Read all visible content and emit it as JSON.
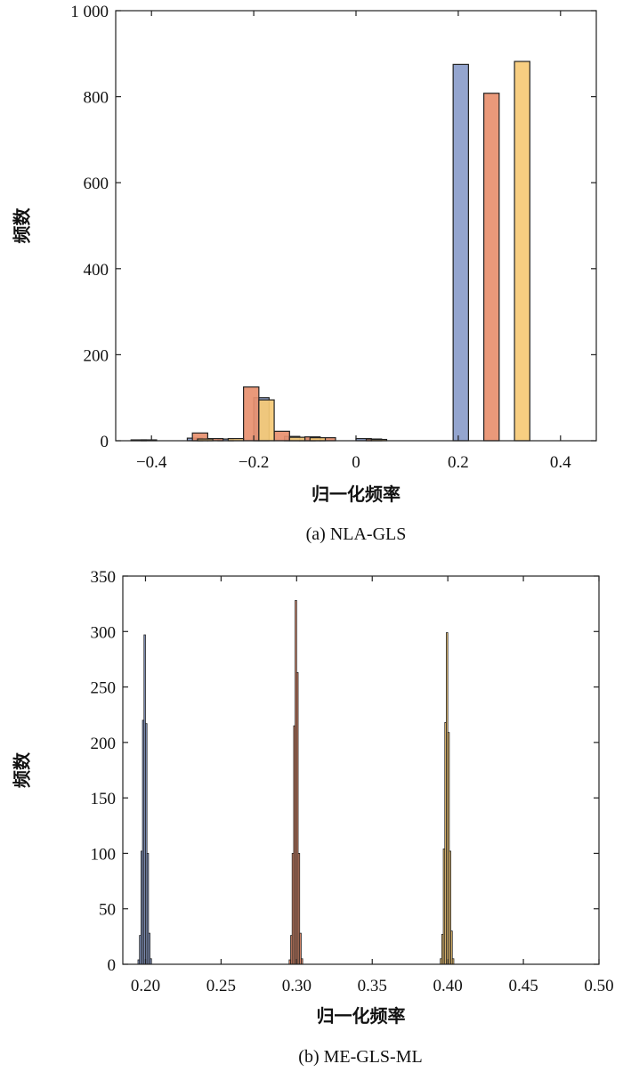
{
  "chart_data": [
    {
      "type": "bar",
      "caption": "(a) NLA-GLS",
      "xlabel": "归一化频率",
      "ylabel": "频数",
      "xlim": [
        -0.47,
        0.47
      ],
      "ylim": [
        0,
        1000
      ],
      "xticks": [
        -0.4,
        -0.2,
        0,
        0.2,
        0.4
      ],
      "xtick_labels": [
        "−0.4",
        "−0.2",
        "0",
        "0.2",
        "0.4"
      ],
      "yticks": [
        0,
        200,
        400,
        600,
        800,
        1000
      ],
      "ytick_labels": [
        "0",
        "200",
        "400",
        "600",
        "800",
        "1 000"
      ],
      "grid": false,
      "series": [
        {
          "color": "#8b9dcb",
          "bins": [
            {
              "x0": -0.44,
              "x1": -0.41,
              "y": 2
            },
            {
              "x0": -0.33,
              "x1": -0.3,
              "y": 6
            },
            {
              "x0": -0.27,
              "x1": -0.24,
              "y": 4
            },
            {
              "x0": -0.2,
              "x1": -0.17,
              "y": 100
            },
            {
              "x0": -0.14,
              "x1": -0.11,
              "y": 10
            },
            {
              "x0": -0.11,
              "x1": -0.08,
              "y": 8
            },
            {
              "x0": 0.0,
              "x1": 0.03,
              "y": 5
            },
            {
              "x0": 0.19,
              "x1": 0.22,
              "y": 875
            }
          ]
        },
        {
          "color": "#e8906f",
          "bins": [
            {
              "x0": -0.42,
              "x1": -0.39,
              "y": 2
            },
            {
              "x0": -0.32,
              "x1": -0.29,
              "y": 18
            },
            {
              "x0": -0.29,
              "x1": -0.26,
              "y": 5
            },
            {
              "x0": -0.22,
              "x1": -0.19,
              "y": 125
            },
            {
              "x0": -0.16,
              "x1": -0.13,
              "y": 22
            },
            {
              "x0": -0.1,
              "x1": -0.07,
              "y": 9
            },
            {
              "x0": -0.07,
              "x1": -0.04,
              "y": 7
            },
            {
              "x0": 0.02,
              "x1": 0.05,
              "y": 4
            },
            {
              "x0": 0.25,
              "x1": 0.28,
              "y": 808
            }
          ]
        },
        {
          "color": "#f6ca76",
          "bins": [
            {
              "x0": -0.31,
              "x1": -0.28,
              "y": 4
            },
            {
              "x0": -0.25,
              "x1": -0.22,
              "y": 5
            },
            {
              "x0": -0.19,
              "x1": -0.16,
              "y": 95
            },
            {
              "x0": -0.13,
              "x1": -0.1,
              "y": 8
            },
            {
              "x0": -0.09,
              "x1": -0.06,
              "y": 7
            },
            {
              "x0": 0.03,
              "x1": 0.06,
              "y": 3
            },
            {
              "x0": 0.31,
              "x1": 0.34,
              "y": 882
            }
          ]
        }
      ]
    },
    {
      "type": "bar",
      "caption": "(b) ME-GLS-ML",
      "xlabel": "归一化频率",
      "ylabel": "频数",
      "xlim": [
        0.185,
        0.5
      ],
      "ylim": [
        0,
        350
      ],
      "xticks": [
        0.2,
        0.25,
        0.3,
        0.35,
        0.4,
        0.45,
        0.5
      ],
      "xtick_labels": [
        "0.20",
        "0.25",
        "0.30",
        "0.35",
        "0.40",
        "0.45",
        "0.50"
      ],
      "yticks": [
        0,
        50,
        100,
        150,
        200,
        250,
        300,
        350
      ],
      "ytick_labels": [
        "0",
        "50",
        "100",
        "150",
        "200",
        "250",
        "300",
        "350"
      ],
      "grid": false,
      "bin_width": 0.001,
      "series": [
        {
          "color": "#8b9dcb",
          "start": 0.195,
          "values": [
            4,
            26,
            102,
            220,
            297,
            217,
            100,
            28,
            5
          ]
        },
        {
          "color": "#e8906f",
          "start": 0.295,
          "values": [
            4,
            26,
            100,
            215,
            328,
            263,
            100,
            28,
            5
          ]
        },
        {
          "color": "#f6ca76",
          "start": 0.395,
          "values": [
            5,
            27,
            104,
            218,
            299,
            209,
            102,
            30,
            5
          ]
        }
      ]
    }
  ]
}
